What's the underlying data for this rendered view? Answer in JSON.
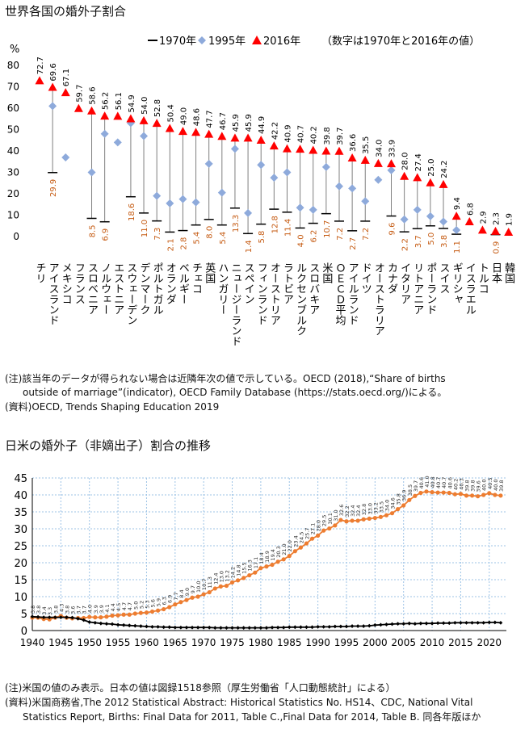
{
  "top": {
    "title": "世界各国の婚外子割合",
    "unit": "%",
    "legend": {
      "s1970": "1970年",
      "s1995": "1995年",
      "s2016": "2016年",
      "note": "（数字は1970年と2016年の値）"
    },
    "notes": [
      "(注)該当年のデータが得られない場合は近隣年次の値で示している。OECD (2018),“Share of births",
      "outside of marriage”(indicator), OECD Family Database (https://stats.oecd.org/)による。",
      "(資料)OECD, Trends Shaping Education 2019"
    ]
  },
  "bottom": {
    "title": "日米の婚外子（非嫡出子）割合の推移",
    "notes": [
      "(注)米国の値のみ表示。日本の値は図録1518参照（厚生労働省「人口動態統計」による）",
      "(資料)米国商務省,The 2012 Statistical Abstract: Historical Statistics No. HS14、CDC, National Vital",
      "Statistics Report, Births: Final Data for 2011, Table C.,Final Data for 2014, Table B.  同各年版ほか"
    ]
  },
  "colors": {
    "v1970": "#000000",
    "v1995": "#8eaadb",
    "v2016": "#ff0000",
    "label2016": "#000000",
    "label1970": "#c55a11",
    "us": "#ed7d31",
    "jp": "#000000",
    "grid": "#9dc3e6"
  },
  "chart_data": [
    {
      "type": "dot-range",
      "title": "世界各国の婚外子割合",
      "ylabel": "%",
      "ylim": [
        0,
        80
      ],
      "yticks": [
        0,
        10,
        20,
        30,
        40,
        50,
        60,
        70,
        80
      ],
      "series_names": [
        "1970年",
        "1995年",
        "2016年"
      ],
      "countries": [
        {
          "name": "チリ",
          "v1970": null,
          "v1995": null,
          "v2016": 72.7
        },
        {
          "name": "アイスランド",
          "v1970": 29.9,
          "v1995": 61,
          "v2016": 69.6
        },
        {
          "name": "メキシコ",
          "v1970": null,
          "v1995": 37,
          "v2016": 67.1
        },
        {
          "name": "フランス",
          "v1970": null,
          "v1995": null,
          "v2016": 59.7
        },
        {
          "name": "スロベニア",
          "v1970": 8.5,
          "v1995": 30,
          "v2016": 58.6
        },
        {
          "name": "ノルウェー",
          "v1970": 6.9,
          "v1995": 48,
          "v2016": 56.2
        },
        {
          "name": "エストニア",
          "v1970": null,
          "v1995": 44,
          "v2016": 56.1
        },
        {
          "name": "スウェーデン",
          "v1970": 18.6,
          "v1995": 53,
          "v2016": 54.9
        },
        {
          "name": "デンマーク",
          "v1970": 11.0,
          "v1995": 47,
          "v2016": 54.0
        },
        {
          "name": "ポルトガル",
          "v1970": 7.3,
          "v1995": 19,
          "v2016": 52.8
        },
        {
          "name": "オランダ",
          "v1970": 2.1,
          "v1995": 15.5,
          "v2016": 50.4
        },
        {
          "name": "ベルギー",
          "v1970": 2.8,
          "v1995": 17.5,
          "v2016": 49.0
        },
        {
          "name": "チェコ",
          "v1970": 5.4,
          "v1995": 16,
          "v2016": 48.6
        },
        {
          "name": "英国",
          "v1970": 8.0,
          "v1995": 34,
          "v2016": 47.7
        },
        {
          "name": "ハンガリー",
          "v1970": 5.4,
          "v1995": 20.5,
          "v2016": 46.7
        },
        {
          "name": "ニュージーランド",
          "v1970": 13.3,
          "v1995": 41,
          "v2016": 45.9
        },
        {
          "name": "スペイン",
          "v1970": 1.4,
          "v1995": 11,
          "v2016": 45.9
        },
        {
          "name": "フィンランド",
          "v1970": 5.8,
          "v1995": 33.5,
          "v2016": 44.9
        },
        {
          "name": "オーストリア",
          "v1970": 12.8,
          "v1995": 27.5,
          "v2016": 42.2
        },
        {
          "name": "ラトビア",
          "v1970": 11.4,
          "v1995": 30,
          "v2016": 40.9
        },
        {
          "name": "ルクセンブルク",
          "v1970": 4.0,
          "v1995": 13.5,
          "v2016": 40.7
        },
        {
          "name": "スロバキア",
          "v1970": 6.2,
          "v1995": 12.5,
          "v2016": 40.2
        },
        {
          "name": "米国",
          "v1970": 10.7,
          "v1995": 32.5,
          "v2016": 39.8
        },
        {
          "name": "ＯＥＣＤ平均",
          "v1970": 7.2,
          "v1995": 23.5,
          "v2016": 39.7
        },
        {
          "name": "アイルランド",
          "v1970": 2.7,
          "v1995": 22.5,
          "v2016": 36.6
        },
        {
          "name": "ドイツ",
          "v1970": 7.2,
          "v1995": 16.5,
          "v2016": 35.5
        },
        {
          "name": "オーストラリア",
          "v1970": null,
          "v1995": 26.5,
          "v2016": 34.0
        },
        {
          "name": "カナダ",
          "v1970": 9.6,
          "v1995": 31,
          "v2016": 33.9
        },
        {
          "name": "イタリア",
          "v1970": 2.2,
          "v1995": 8,
          "v2016": 28.0
        },
        {
          "name": "リトアニア",
          "v1970": 3.7,
          "v1995": 12.5,
          "v2016": 27.4
        },
        {
          "name": "ポーランド",
          "v1970": 5.0,
          "v1995": 9.5,
          "v2016": 25.0
        },
        {
          "name": "スイス",
          "v1970": 3.8,
          "v1995": 7,
          "v2016": 24.2
        },
        {
          "name": "ギリシャ",
          "v1970": 1.1,
          "v1995": 3,
          "v2016": 9.4
        },
        {
          "name": "イスラエル",
          "v1970": null,
          "v1995": null,
          "v2016": 6.8
        },
        {
          "name": "トルコ",
          "v1970": null,
          "v1995": null,
          "v2016": 2.9
        },
        {
          "name": "日本",
          "v1970": 0.9,
          "v1995": null,
          "v2016": 2.3
        },
        {
          "name": "韓国",
          "v1970": null,
          "v1995": null,
          "v2016": 1.9
        }
      ]
    },
    {
      "type": "line",
      "title": "日米の婚外子（非嫡出子）割合の推移",
      "ylim": [
        0,
        45
      ],
      "yticks": [
        0,
        5,
        10,
        15,
        20,
        25,
        30,
        35,
        40,
        45
      ],
      "xlim": [
        1940,
        2023
      ],
      "xticks": [
        1940,
        1945,
        1950,
        1955,
        1960,
        1965,
        1970,
        1975,
        1980,
        1985,
        1990,
        1995,
        2000,
        2005,
        2010,
        2015,
        2020
      ],
      "series": [
        {
          "name": "米国",
          "labels": true,
          "points": [
            [
              1940,
              3.8
            ],
            [
              1941,
              3.8
            ],
            [
              1942,
              3.4
            ],
            [
              1943,
              3.3
            ],
            [
              1944,
              3.8
            ],
            [
              1945,
              4.3
            ],
            [
              1946,
              3.8
            ],
            [
              1947,
              3.6
            ],
            [
              1948,
              3.7
            ],
            [
              1949,
              3.7
            ],
            [
              1950,
              4.0
            ],
            [
              1951,
              3.9
            ],
            [
              1952,
              3.9
            ],
            [
              1953,
              4.1
            ],
            [
              1954,
              4.4
            ],
            [
              1955,
              4.5
            ],
            [
              1956,
              4.7
            ],
            [
              1957,
              4.7
            ],
            [
              1958,
              5.0
            ],
            [
              1959,
              5.2
            ],
            [
              1960,
              5.3
            ],
            [
              1961,
              5.6
            ],
            [
              1962,
              5.9
            ],
            [
              1963,
              6.3
            ],
            [
              1964,
              6.9
            ],
            [
              1965,
              7.7
            ],
            [
              1966,
              8.4
            ],
            [
              1967,
              9.0
            ],
            [
              1968,
              9.7
            ],
            [
              1969,
              10.0
            ],
            [
              1970,
              10.7
            ],
            [
              1971,
              11.3
            ],
            [
              1972,
              12.4
            ],
            [
              1973,
              13.0
            ],
            [
              1974,
              13.2
            ],
            [
              1975,
              14.2
            ],
            [
              1976,
              14.8
            ],
            [
              1977,
              15.5
            ],
            [
              1978,
              16.3
            ],
            [
              1979,
              17.1
            ],
            [
              1980,
              18.4
            ],
            [
              1981,
              18.9
            ],
            [
              1982,
              19.4
            ],
            [
              1983,
              20.3
            ],
            [
              1984,
              21.0
            ],
            [
              1985,
              22.0
            ],
            [
              1986,
              23.4
            ],
            [
              1987,
              24.5
            ],
            [
              1988,
              25.7
            ],
            [
              1989,
              27.1
            ],
            [
              1990,
              28.0
            ],
            [
              1991,
              29.5
            ],
            [
              1992,
              30.1
            ],
            [
              1993,
              31.0
            ],
            [
              1994,
              32.6
            ],
            [
              1995,
              32.2
            ],
            [
              1996,
              32.4
            ],
            [
              1997,
              32.4
            ],
            [
              1998,
              32.8
            ],
            [
              1999,
              33.0
            ],
            [
              2000,
              33.2
            ],
            [
              2001,
              33.5
            ],
            [
              2002,
              34.0
            ],
            [
              2003,
              34.6
            ],
            [
              2004,
              35.8
            ],
            [
              2005,
              36.9
            ],
            [
              2006,
              38.5
            ],
            [
              2007,
              39.7
            ],
            [
              2008,
              40.6
            ],
            [
              2009,
              41.0
            ],
            [
              2010,
              40.8
            ],
            [
              2011,
              40.7
            ],
            [
              2012,
              40.7
            ],
            [
              2013,
              40.6
            ],
            [
              2014,
              40.2
            ],
            [
              2015,
              40.3
            ],
            [
              2016,
              39.8
            ],
            [
              2017,
              39.8
            ],
            [
              2018,
              39.6
            ],
            [
              2019,
              40.0
            ],
            [
              2020,
              40.5
            ],
            [
              2021,
              40.0
            ],
            [
              2022,
              39.8
            ]
          ]
        },
        {
          "name": "日本",
          "labels": false,
          "points": [
            [
              1940,
              4.1
            ],
            [
              1941,
              4.0
            ],
            [
              1942,
              3.9
            ],
            [
              1943,
              3.9
            ],
            [
              1944,
              3.9
            ],
            [
              1945,
              3.9
            ],
            [
              1946,
              3.9
            ],
            [
              1947,
              3.8
            ],
            [
              1948,
              3.5
            ],
            [
              1949,
              3.1
            ],
            [
              1950,
              2.5
            ],
            [
              1951,
              2.3
            ],
            [
              1952,
              2.1
            ],
            [
              1953,
              2.0
            ],
            [
              1954,
              1.9
            ],
            [
              1955,
              1.7
            ],
            [
              1956,
              1.6
            ],
            [
              1957,
              1.5
            ],
            [
              1958,
              1.4
            ],
            [
              1959,
              1.3
            ],
            [
              1960,
              1.2
            ],
            [
              1961,
              1.1
            ],
            [
              1962,
              1.1
            ],
            [
              1963,
              1.0
            ],
            [
              1964,
              1.0
            ],
            [
              1965,
              0.9
            ],
            [
              1966,
              0.9
            ],
            [
              1967,
              0.9
            ],
            [
              1968,
              0.9
            ],
            [
              1969,
              0.9
            ],
            [
              1970,
              0.9
            ],
            [
              1971,
              0.9
            ],
            [
              1972,
              0.8
            ],
            [
              1973,
              0.8
            ],
            [
              1974,
              0.8
            ],
            [
              1975,
              0.8
            ],
            [
              1976,
              0.8
            ],
            [
              1977,
              0.8
            ],
            [
              1978,
              0.8
            ],
            [
              1979,
              0.8
            ],
            [
              1980,
              0.8
            ],
            [
              1981,
              0.8
            ],
            [
              1982,
              0.9
            ],
            [
              1983,
              0.9
            ],
            [
              1984,
              0.9
            ],
            [
              1985,
              1.0
            ],
            [
              1986,
              1.0
            ],
            [
              1987,
              1.0
            ],
            [
              1988,
              1.0
            ],
            [
              1989,
              1.0
            ],
            [
              1990,
              1.1
            ],
            [
              1991,
              1.1
            ],
            [
              1992,
              1.1
            ],
            [
              1993,
              1.2
            ],
            [
              1994,
              1.2
            ],
            [
              1995,
              1.2
            ],
            [
              1996,
              1.3
            ],
            [
              1997,
              1.3
            ],
            [
              1998,
              1.3
            ],
            [
              1999,
              1.4
            ],
            [
              2000,
              1.6
            ],
            [
              2001,
              1.7
            ],
            [
              2002,
              1.8
            ],
            [
              2003,
              1.9
            ],
            [
              2004,
              2.0
            ],
            [
              2005,
              2.0
            ],
            [
              2006,
              2.1
            ],
            [
              2007,
              2.0
            ],
            [
              2008,
              2.1
            ],
            [
              2009,
              2.1
            ],
            [
              2010,
              2.1
            ],
            [
              2011,
              2.2
            ],
            [
              2012,
              2.2
            ],
            [
              2013,
              2.2
            ],
            [
              2014,
              2.3
            ],
            [
              2015,
              2.3
            ],
            [
              2016,
              2.3
            ],
            [
              2017,
              2.3
            ],
            [
              2018,
              2.3
            ],
            [
              2019,
              2.3
            ],
            [
              2020,
              2.4
            ],
            [
              2021,
              2.4
            ],
            [
              2022,
              2.3
            ]
          ]
        }
      ]
    }
  ]
}
